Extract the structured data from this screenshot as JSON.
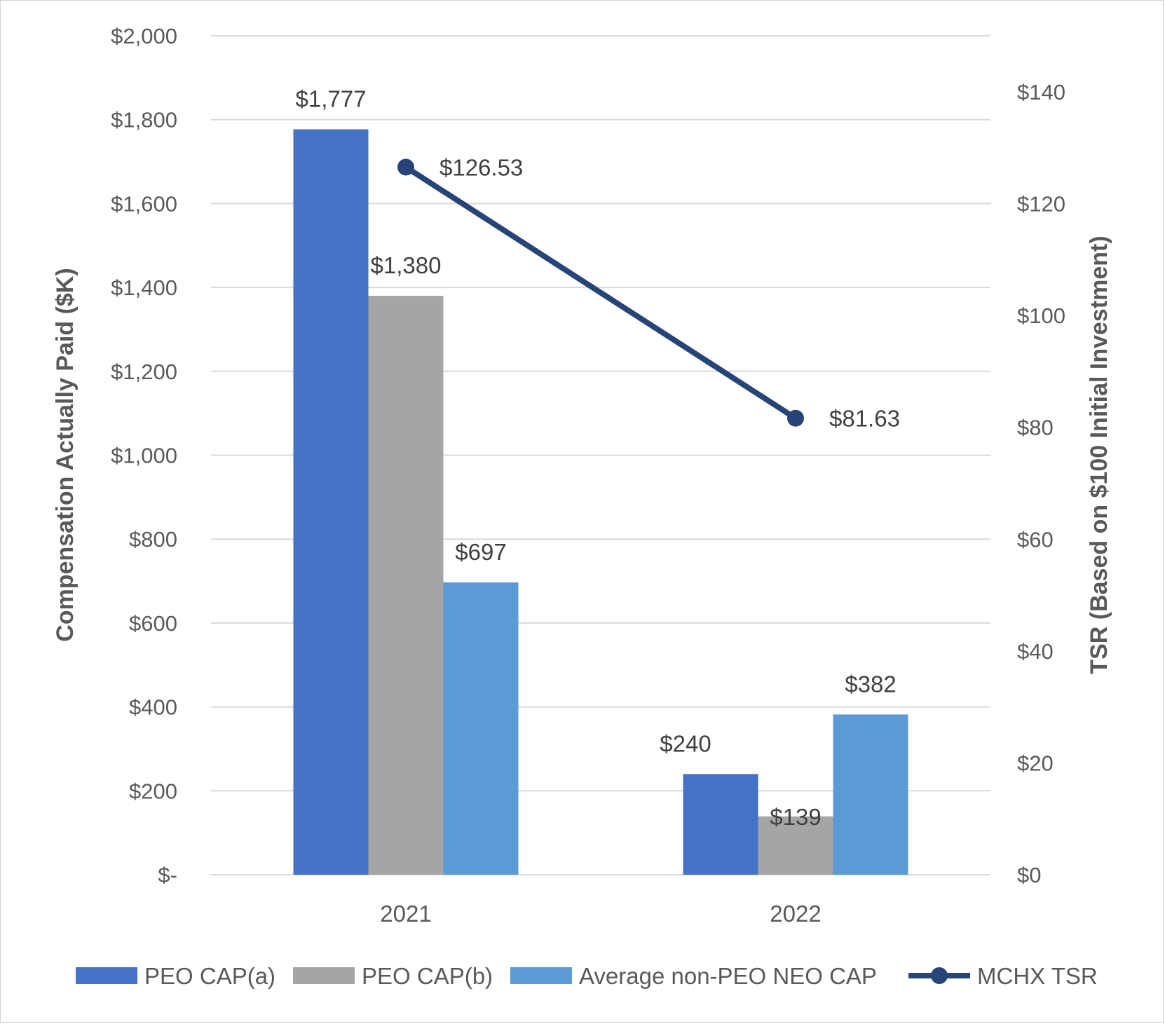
{
  "chart_data": {
    "type": "bar",
    "categories": [
      "2021",
      "2022"
    ],
    "series": [
      {
        "name": "PEO CAP(a)",
        "values": [
          1777,
          240
        ],
        "labels": [
          "$1,777",
          "$240"
        ],
        "color": "#4472C4",
        "axis": "left",
        "kind": "bar"
      },
      {
        "name": "PEO CAP(b)",
        "values": [
          1380,
          139
        ],
        "labels": [
          "$1,380",
          "$139"
        ],
        "color": "#A5A5A5",
        "axis": "left",
        "kind": "bar"
      },
      {
        "name": "Average non-PEO NEO CAP",
        "values": [
          697,
          382
        ],
        "labels": [
          "$697",
          "$382"
        ],
        "color": "#5B9BD5",
        "axis": "left",
        "kind": "bar"
      },
      {
        "name": "MCHX TSR",
        "values": [
          126.53,
          81.63
        ],
        "labels": [
          "$126.53",
          "$81.63"
        ],
        "color": "#264478",
        "axis": "right",
        "kind": "line"
      }
    ],
    "y_left": {
      "label": "Compensation Actually Paid ($K)",
      "min": 0,
      "max": 2000,
      "step": 200,
      "ticks": [
        "$-",
        "$200",
        "$400",
        "$600",
        "$800",
        "$1,000",
        "$1,200",
        "$1,400",
        "$1,600",
        "$1,800",
        "$2,000"
      ]
    },
    "y_right": {
      "label": "TSR (Based on $100 Initial Investment)",
      "min": 0,
      "max": 150,
      "step": 20,
      "ticks": [
        "$0",
        "$20",
        "$40",
        "$60",
        "$80",
        "$100",
        "$120",
        "$140"
      ]
    },
    "grid": true,
    "legend_position": "bottom"
  }
}
